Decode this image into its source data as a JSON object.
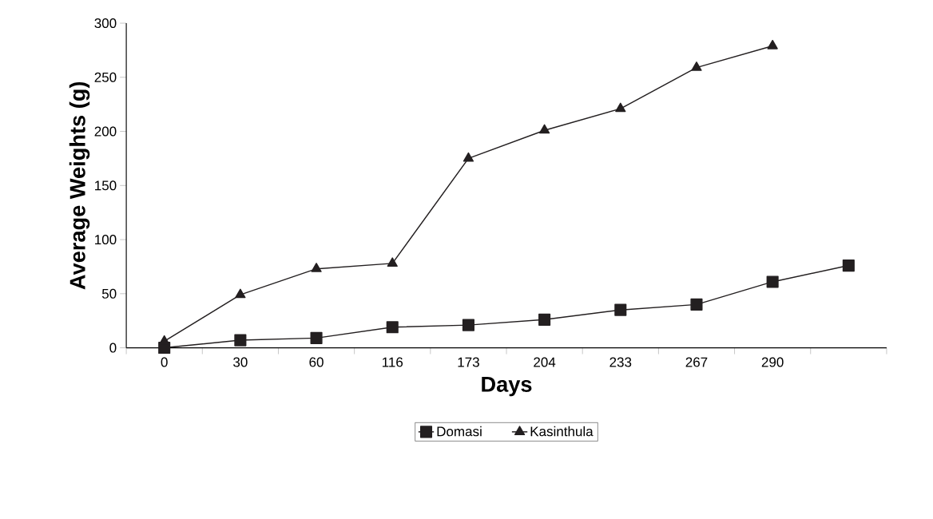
{
  "chart_data": {
    "type": "line",
    "xlabel": "Days",
    "ylabel": "Average Weights (g)",
    "categories": [
      "0",
      "30",
      "60",
      "116",
      "173",
      "204",
      "233",
      "267",
      "290",
      null
    ],
    "series": [
      {
        "name": "Domasi",
        "color": "#231f20",
        "marker": "square",
        "values": [
          0,
          7,
          9,
          19,
          21,
          26,
          35,
          40,
          61,
          76
        ]
      },
      {
        "name": "Kasinthula",
        "color": "#231f20",
        "marker": "triangle",
        "values": [
          6,
          49,
          73,
          78,
          175,
          201,
          221,
          259,
          279,
          null
        ]
      }
    ],
    "ylim": [
      0,
      300
    ],
    "yticks": [
      0,
      50,
      100,
      150,
      200,
      250,
      300
    ],
    "grid": false,
    "legend": "bottom",
    "line_style": "solid"
  }
}
